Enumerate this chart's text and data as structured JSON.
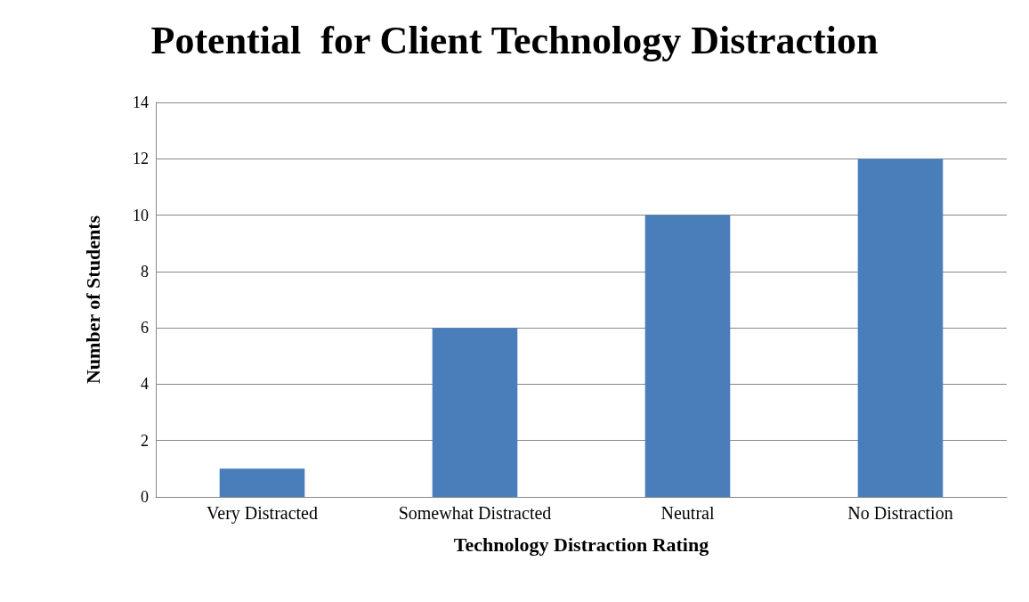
{
  "chart_data": {
    "type": "bar",
    "title": "Potential  for Client Technology Distraction",
    "xlabel": "Technology Distraction Rating",
    "ylabel": "Number of Students",
    "categories": [
      "Very Distracted",
      "Somewhat Distracted",
      "Neutral",
      "No Distraction"
    ],
    "values": [
      1,
      6,
      10,
      12
    ],
    "color": "#4a7ebb",
    "ylim": [
      0,
      14
    ],
    "yticks": [
      0,
      2,
      4,
      6,
      8,
      10,
      12,
      14
    ],
    "grid": "y"
  }
}
